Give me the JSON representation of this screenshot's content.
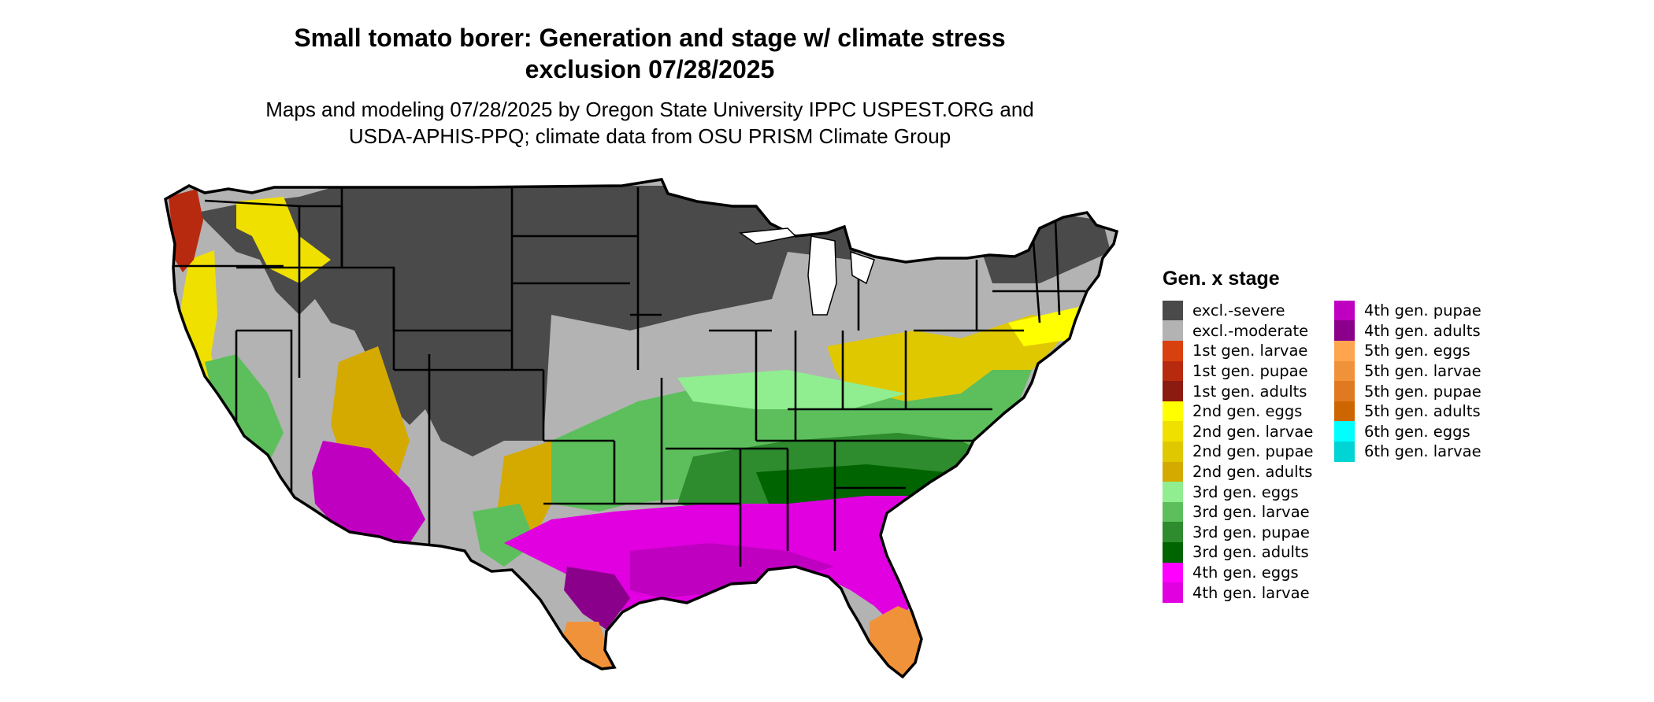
{
  "header": {
    "title_line1": "Small tomato borer: Generation and stage w/ climate stress",
    "title_line2": "exclusion 07/28/2025",
    "subtitle_line1": "Maps and modeling 07/28/2025 by Oregon State University IPPC USPEST.ORG and",
    "subtitle_line2": "USDA-APHIS-PPQ; climate data from OSU PRISM Climate Group"
  },
  "legend": {
    "title": "Gen. x stage",
    "column1": [
      {
        "label": "excl.-severe",
        "color": "#4a4a4a"
      },
      {
        "label": "excl.-moderate",
        "color": "#b3b3b3"
      },
      {
        "label": "1st gen. larvae",
        "color": "#d9400f"
      },
      {
        "label": "1st gen. pupae",
        "color": "#b82a10"
      },
      {
        "label": "1st gen. adults",
        "color": "#8b1a10"
      },
      {
        "label": "2nd gen. eggs",
        "color": "#ffff00"
      },
      {
        "label": "2nd gen. larvae",
        "color": "#f0e000"
      },
      {
        "label": "2nd gen. pupae",
        "color": "#e0c800"
      },
      {
        "label": "2nd gen. adults",
        "color": "#d4aa00"
      },
      {
        "label": "3rd gen. eggs",
        "color": "#90ee90"
      },
      {
        "label": "3rd gen. larvae",
        "color": "#5cbf5c"
      },
      {
        "label": "3rd gen. pupae",
        "color": "#2e8b2e"
      },
      {
        "label": "3rd gen. adults",
        "color": "#006400"
      },
      {
        "label": "4th gen. eggs",
        "color": "#ff00ff"
      },
      {
        "label": "4th gen. larvae",
        "color": "#e000e0"
      }
    ],
    "column2": [
      {
        "label": "4th gen. pupae",
        "color": "#c000c0"
      },
      {
        "label": "4th gen. adults",
        "color": "#8b008b"
      },
      {
        "label": "5th gen. eggs",
        "color": "#ffa54f"
      },
      {
        "label": "5th gen. larvae",
        "color": "#f0923a"
      },
      {
        "label": "5th gen. pupae",
        "color": "#e07a20"
      },
      {
        "label": "5th gen. adults",
        "color": "#cd6600"
      },
      {
        "label": "6th gen. eggs",
        "color": "#00ffff"
      },
      {
        "label": "6th gen. larvae",
        "color": "#00d4d4"
      }
    ]
  }
}
